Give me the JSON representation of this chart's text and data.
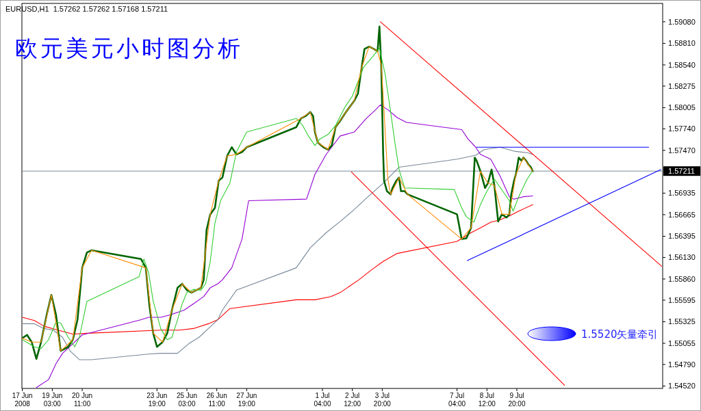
{
  "chart_data": {
    "type": "line",
    "title": "欧元美元小时图分析",
    "subtitle": "EURUSD,H1  1.57262 1.57262 1.57168 1.57211",
    "xlim": [
      "2008-06-17T18:30",
      "2008-07-16T08:00"
    ],
    "ylim": [
      1.5449,
      1.5931
    ],
    "xticks": [
      {
        "value": "2008-06-17T19:00",
        "label": "17 Jun 2008"
      },
      {
        "value": "2008-06-19T03:00",
        "label": "19 Jun 03:00"
      },
      {
        "value": "2008-06-20T11:00",
        "label": "20 Jun 11:00"
      },
      {
        "value": "2008-06-23T19:00",
        "label": "23 Jun 19:00"
      },
      {
        "value": "2008-06-25T03:00",
        "label": "25 Jun 03:00"
      },
      {
        "value": "2008-06-26T11:00",
        "label": "26 Jun 11:00"
      },
      {
        "value": "2008-06-27T19:00",
        "label": "27 Jun 19:00"
      },
      {
        "value": "2008-07-01T04:00",
        "label": "1 Jul 04:00"
      },
      {
        "value": "2008-07-02T12:00",
        "label": "2 Jul 12:00"
      },
      {
        "value": "2008-07-03T20:00",
        "label": "3 Jul 20:00"
      },
      {
        "value": "2008-07-07T04:00",
        "label": "7 Jul 04:00"
      },
      {
        "value": "2008-07-08T12:00",
        "label": "8 Jul 12:00"
      },
      {
        "value": "2008-07-09T20:00",
        "label": "9 Jul 20:00"
      }
    ],
    "yticks": [
      {
        "value": 1.5908,
        "label": "1.59080"
      },
      {
        "value": 1.5881,
        "label": "1.58810"
      },
      {
        "value": 1.5854,
        "label": "1.58540"
      },
      {
        "value": 1.58275,
        "label": "1.58275"
      },
      {
        "value": 1.58005,
        "label": "1.58005"
      },
      {
        "value": 1.5774,
        "label": "1.57740"
      },
      {
        "value": 1.5747,
        "label": "1.57470"
      },
      {
        "value": 1.56935,
        "label": "1.56935"
      },
      {
        "value": 1.56665,
        "label": "1.56665"
      },
      {
        "value": 1.56395,
        "label": "1.56395"
      },
      {
        "value": 1.5613,
        "label": "1.56130"
      },
      {
        "value": 1.5586,
        "label": "1.55860"
      },
      {
        "value": 1.55595,
        "label": "1.55595"
      },
      {
        "value": 1.55325,
        "label": "1.55325"
      },
      {
        "value": 1.55055,
        "label": "1.55055"
      },
      {
        "value": 1.5479,
        "label": "1.54790"
      },
      {
        "value": 1.5452,
        "label": "1.54520"
      }
    ],
    "ref_lines": [
      {
        "axis": "y",
        "value": 1.57211,
        "label": "1.57211",
        "color": "#778899"
      }
    ],
    "annotations": [
      "1.5520矢量牵引"
    ],
    "series": [
      {
        "color": "#ff0000",
        "x": [
          "2008-06-17T19:00",
          "2008-06-18T08:00",
          "2008-06-18T18:00",
          "2008-06-19T09:00",
          "2008-06-20T01:00",
          "2008-06-20T16:00",
          "2008-06-23T23:00",
          "2008-06-24T19:00",
          "2008-06-25T10:00",
          "2008-06-26T02:00",
          "2008-06-26T12:00",
          "2008-06-27T01:00",
          "2008-06-30T00:00",
          "2008-06-30T20:00",
          "2008-07-01T13:00",
          "2008-07-01T23:00",
          "2008-07-02T09:00",
          "2008-07-02T19:00",
          "2008-07-03T08:00",
          "2008-07-03T21:00",
          "2008-07-04T12:00",
          "2008-07-07T04:00",
          "2008-07-07T19:00",
          "2008-07-08T05:00",
          "2008-07-08T16:00",
          "2008-07-09T02:00",
          "2008-07-09T12:00",
          "2008-07-09T22:00",
          "2008-07-10T13:00"
        ],
        "values": [
          1.5538,
          1.5534,
          1.5527,
          1.5522,
          1.5517,
          1.5518,
          1.5522,
          1.5522,
          1.5524,
          1.553,
          1.5535,
          1.5549,
          1.556,
          1.556,
          1.5564,
          1.5569,
          1.5577,
          1.5585,
          1.5597,
          1.5608,
          1.5618,
          1.5633,
          1.5644,
          1.565,
          1.5657,
          1.566,
          1.5665,
          1.5671,
          1.5679
        ]
      },
      {
        "color": "#778899",
        "x": [
          "2008-06-17T19:00",
          "2008-06-18T08:00",
          "2008-06-18T18:00",
          "2008-06-19T04:00",
          "2008-06-19T14:00",
          "2008-06-19T22:00",
          "2008-06-20T08:00",
          "2008-06-20T21:00",
          "2008-06-23T10:00",
          "2008-06-23T23:00",
          "2008-06-24T17:00",
          "2008-06-25T05:00",
          "2008-06-25T16:00",
          "2008-06-26T02:00",
          "2008-06-26T12:00",
          "2008-06-26T17:00",
          "2008-06-27T08:00",
          "2008-06-30T00:00",
          "2008-06-30T15:00",
          "2008-07-01T08:00",
          "2008-07-01T23:00",
          "2008-07-02T14:00",
          "2008-07-03T02:00",
          "2008-07-03T21:00",
          "2008-07-04T14:00",
          "2008-07-07T04:00",
          "2008-07-08T00:00",
          "2008-07-08T09:00",
          "2008-07-09T02:00",
          "2008-07-09T17:00",
          "2008-07-10T08:00",
          "2008-07-10T13:00"
        ],
        "values": [
          1.553,
          1.553,
          1.5524,
          1.5522,
          1.5513,
          1.5496,
          1.5485,
          1.5485,
          1.5492,
          1.5493,
          1.5493,
          1.5505,
          1.5513,
          1.5524,
          1.5535,
          1.5547,
          1.5572,
          1.56,
          1.5625,
          1.5644,
          1.5658,
          1.5673,
          1.5686,
          1.5706,
          1.5726,
          1.5736,
          1.5741,
          1.5748,
          1.5751,
          1.5746,
          1.5744,
          1.5742
        ]
      },
      {
        "color": "#9400d3",
        "x": [
          "2008-06-18T10:00",
          "2008-06-18T23:00",
          "2008-06-19T07:00",
          "2008-06-19T14:00",
          "2008-06-20T01:00",
          "2008-06-20T11:00",
          "2008-06-23T02:00",
          "2008-06-23T10:00",
          "2008-06-23T23:00",
          "2008-06-24T09:00",
          "2008-06-25T00:00",
          "2008-06-25T10:00",
          "2008-06-25T21:00",
          "2008-06-26T04:00",
          "2008-06-26T12:00",
          "2008-06-26T17:00",
          "2008-06-27T03:00",
          "2008-06-27T14:00",
          "2008-06-27T21:00",
          "2008-06-30T11:00",
          "2008-06-30T20:00",
          "2008-07-01T08:00",
          "2008-07-01T23:00",
          "2008-07-02T14:00",
          "2008-07-03T03:00",
          "2008-07-03T13:00",
          "2008-07-03T18:00",
          "2008-07-04T02:00",
          "2008-07-04T12:00",
          "2008-07-04T22:00",
          "2008-07-07T09:00",
          "2008-07-07T16:00",
          "2008-07-08T00:00",
          "2008-07-08T05:00",
          "2008-07-08T16:00",
          "2008-07-09T02:00",
          "2008-07-09T12:00",
          "2008-07-09T17:00",
          "2008-07-10T03:00",
          "2008-07-10T13:00"
        ],
        "values": [
          1.545,
          1.546,
          1.548,
          1.5493,
          1.5505,
          1.5516,
          1.5535,
          1.5538,
          1.5538,
          1.5541,
          1.5547,
          1.5555,
          1.5564,
          1.5575,
          1.558,
          1.5585,
          1.56,
          1.5636,
          1.5684,
          1.5686,
          1.5717,
          1.5742,
          1.5765,
          1.577,
          1.5787,
          1.5798,
          1.5804,
          1.5798,
          1.5788,
          1.5782,
          1.5773,
          1.5761,
          1.5751,
          1.5742,
          1.5736,
          1.5715,
          1.5689,
          1.5686,
          1.5689,
          1.569
        ]
      },
      {
        "color": "#006400",
        "x": [
          "2008-06-17T19:00",
          "2008-06-18T00:00",
          "2008-06-18T05:00",
          "2008-06-18T10:00",
          "2008-06-18T15:00",
          "2008-06-18T21:00",
          "2008-06-19T02:00",
          "2008-06-19T07:00",
          "2008-06-19T12:00",
          "2008-06-19T20:00",
          "2008-06-20T01:00",
          "2008-06-20T06:00",
          "2008-06-20T11:00",
          "2008-06-20T16:00",
          "2008-06-20T21:00",
          "2008-06-23T02:00",
          "2008-06-23T07:00",
          "2008-06-23T11:00",
          "2008-06-23T15:00",
          "2008-06-23T19:00",
          "2008-06-24T01:00",
          "2008-06-24T06:00",
          "2008-06-24T11:00",
          "2008-06-24T17:00",
          "2008-06-24T22:00",
          "2008-06-25T03:00",
          "2008-06-25T08:00",
          "2008-06-25T13:00",
          "2008-06-25T18:00",
          "2008-06-25T21:00",
          "2008-06-26T00:00",
          "2008-06-26T04:00",
          "2008-06-26T09:00",
          "2008-06-26T13:00",
          "2008-06-26T17:00",
          "2008-06-26T22:00",
          "2008-06-27T03:00",
          "2008-06-27T08:00",
          "2008-06-27T14:00",
          "2008-06-27T19:00",
          "2008-06-30T00:00",
          "2008-06-30T05:00",
          "2008-06-30T10:00",
          "2008-06-30T15:00",
          "2008-06-30T18:00",
          "2008-06-30T20:00",
          "2008-06-30T23:00",
          "2008-07-01T05:00",
          "2008-07-01T10:00",
          "2008-07-01T14:00",
          "2008-07-01T18:00",
          "2008-07-01T23:00",
          "2008-07-02T04:00",
          "2008-07-02T09:00",
          "2008-07-02T14:00",
          "2008-07-02T18:00",
          "2008-07-02T22:00",
          "2008-07-03T01:00",
          "2008-07-03T06:00",
          "2008-07-03T11:00",
          "2008-07-03T15:00",
          "2008-07-03T17:00",
          "2008-07-03T19:00",
          "2008-07-03T21:00",
          "2008-07-03T22:00",
          "2008-07-04T01:00",
          "2008-07-04T05:00",
          "2008-07-04T07:00",
          "2008-07-04T11:00",
          "2008-07-04T14:00",
          "2008-07-04T16:00",
          "2008-07-04T20:00",
          "2008-07-04T23:00",
          "2008-07-07T04:00",
          "2008-07-07T09:00",
          "2008-07-07T14:00",
          "2008-07-07T19:00",
          "2008-07-07T23:00",
          "2008-07-08T01:00",
          "2008-07-08T05:00",
          "2008-07-08T10:00",
          "2008-07-08T13:00",
          "2008-07-08T17:00",
          "2008-07-08T20:00",
          "2008-07-09T00:00",
          "2008-07-09T04:00",
          "2008-07-09T09:00",
          "2008-07-09T12:00",
          "2008-07-09T14:00",
          "2008-07-09T17:00",
          "2008-07-09T19:00",
          "2008-07-09T22:00",
          "2008-07-10T01:00",
          "2008-07-10T03:00",
          "2008-07-10T06:00",
          "2008-07-10T08:00",
          "2008-07-10T11:00",
          "2008-07-10T13:00"
        ],
        "values": [
          1.5512,
          1.5516,
          1.5507,
          1.5486,
          1.5507,
          1.5541,
          1.5566,
          1.5541,
          1.5496,
          1.5501,
          1.551,
          1.5535,
          1.56,
          1.5619,
          1.5622,
          1.5611,
          1.56,
          1.5552,
          1.5518,
          1.5501,
          1.5507,
          1.5518,
          1.5547,
          1.5575,
          1.558,
          1.5572,
          1.5569,
          1.5572,
          1.5575,
          1.5585,
          1.5647,
          1.5667,
          1.5675,
          1.5709,
          1.5713,
          1.574,
          1.5751,
          1.5742,
          1.5745,
          1.5751,
          1.5776,
          1.5787,
          1.579,
          1.5795,
          1.579,
          1.577,
          1.5757,
          1.5751,
          1.5748,
          1.5753,
          1.5776,
          1.5784,
          1.5793,
          1.5801,
          1.5809,
          1.5818,
          1.5851,
          1.5874,
          1.5877,
          1.5874,
          1.5871,
          1.5902,
          1.5851,
          1.5742,
          1.5709,
          1.5696,
          1.5692,
          1.57,
          1.5709,
          1.5713,
          1.5696,
          1.5696,
          1.5692,
          1.5667,
          1.5636,
          1.5637,
          1.565,
          1.5738,
          1.5734,
          1.5721,
          1.57,
          1.5706,
          1.5723,
          1.5703,
          1.5658,
          1.5667,
          1.5663,
          1.5667,
          1.5692,
          1.5709,
          1.5717,
          1.5738,
          1.5734,
          1.5738,
          1.5734,
          1.573,
          1.5726,
          1.5721
        ]
      },
      {
        "color": "#32cd32",
        "x": [
          "2008-06-17T19:00",
          "2008-06-18T08:00",
          "2008-06-18T15:00",
          "2008-06-18T23:00",
          "2008-06-19T07:00",
          "2008-06-19T12:00",
          "2008-06-19T20:00",
          "2008-06-20T03:00",
          "2008-06-20T08:00",
          "2008-06-20T16:00",
          "2008-06-23T00:00",
          "2008-06-23T05:00",
          "2008-06-23T10:00",
          "2008-06-23T15:00",
          "2008-06-23T23:00",
          "2008-06-24T06:00",
          "2008-06-24T11:00",
          "2008-06-24T17:00",
          "2008-06-24T22:00",
          "2008-06-25T03:00",
          "2008-06-25T10:00",
          "2008-06-25T18:00",
          "2008-06-25T23:00",
          "2008-06-26T04:00",
          "2008-06-26T09:00",
          "2008-06-26T15:00",
          "2008-06-27T01:00",
          "2008-06-27T08:00",
          "2008-06-27T19:00",
          "2008-06-30T00:00",
          "2008-06-30T07:00",
          "2008-06-30T13:00",
          "2008-06-30T20:00",
          "2008-07-01T01:00",
          "2008-07-01T10:00",
          "2008-07-01T18:00",
          "2008-07-02T04:00",
          "2008-07-02T12:00",
          "2008-07-03T00:00",
          "2008-07-03T11:00",
          "2008-07-03T17:00",
          "2008-07-03T23:00",
          "2008-07-04T05:00",
          "2008-07-04T10:00",
          "2008-07-04T14:00",
          "2008-07-04T20:00",
          "2008-07-07T01:00",
          "2008-07-07T09:00",
          "2008-07-07T14:00",
          "2008-07-07T22:00",
          "2008-07-08T05:00",
          "2008-07-08T12:00",
          "2008-07-08T20:00",
          "2008-07-09T12:00",
          "2008-07-09T16:00",
          "2008-07-09T22:00",
          "2008-07-10T07:00",
          "2008-07-10T12:00"
        ],
        "values": [
          1.551,
          1.5501,
          1.5499,
          1.551,
          1.5532,
          1.5531,
          1.5513,
          1.5501,
          1.5513,
          1.5558,
          1.5589,
          1.5611,
          1.5594,
          1.5558,
          1.5524,
          1.551,
          1.5513,
          1.5535,
          1.5555,
          1.5569,
          1.5573,
          1.5572,
          1.558,
          1.5608,
          1.5656,
          1.5684,
          1.5706,
          1.5745,
          1.577,
          1.5787,
          1.5778,
          1.5765,
          1.5753,
          1.5761,
          1.5767,
          1.5778,
          1.5801,
          1.5815,
          1.5851,
          1.5866,
          1.5875,
          1.5843,
          1.5795,
          1.5753,
          1.5723,
          1.57,
          1.5698,
          1.5675,
          1.5664,
          1.5657,
          1.5679,
          1.5696,
          1.5711,
          1.5684,
          1.5671,
          1.5689,
          1.5711,
          1.572
        ]
      },
      {
        "color": "#ff8c00",
        "x": [
          "2008-06-17T19:00",
          "2008-06-18T05:00",
          "2008-06-18T15:00",
          "2008-06-19T02:00",
          "2008-06-19T12:00",
          "2008-06-20T01:00",
          "2008-06-20T11:00",
          "2008-06-20T21:00",
          "2008-06-23T07:00",
          "2008-06-23T15:00",
          "2008-06-24T01:00",
          "2008-06-24T11:00",
          "2008-06-24T22:00",
          "2008-06-25T08:00",
          "2008-06-25T18:00",
          "2008-06-26T04:00",
          "2008-06-26T13:00",
          "2008-06-26T22:00",
          "2008-06-27T08:00",
          "2008-06-27T19:00",
          "2008-06-30T05:00",
          "2008-06-30T15:00",
          "2008-06-30T23:00",
          "2008-07-01T10:00",
          "2008-07-01T18:00",
          "2008-07-02T04:00",
          "2008-07-02T14:00",
          "2008-07-02T22:00",
          "2008-07-03T06:00",
          "2008-07-03T15:00",
          "2008-07-03T19:00",
          "2008-07-03T22:00",
          "2008-07-04T02:00",
          "2008-07-04T05:00",
          "2008-07-04T14:00",
          "2008-07-04T23:00",
          "2008-07-07T09:00",
          "2008-07-07T19:00",
          "2008-07-08T05:00",
          "2008-07-08T13:00",
          "2008-07-08T20:00",
          "2008-07-09T04:00",
          "2008-07-09T12:00",
          "2008-07-09T19:00",
          "2008-07-10T03:00",
          "2008-07-10T13:00"
        ],
        "values": [
          1.5512,
          1.5507,
          1.5507,
          1.5566,
          1.5496,
          1.551,
          1.56,
          1.5622,
          1.56,
          1.5518,
          1.5507,
          1.5547,
          1.558,
          1.5569,
          1.5575,
          1.5667,
          1.5709,
          1.574,
          1.5742,
          1.5751,
          1.5787,
          1.5795,
          1.5757,
          1.5748,
          1.5776,
          1.5793,
          1.5809,
          1.5851,
          1.5877,
          1.5871,
          1.5854,
          1.5795,
          1.5711,
          1.5692,
          1.5713,
          1.5692,
          1.5636,
          1.565,
          1.5721,
          1.5706,
          1.5703,
          1.5667,
          1.5667,
          1.5717,
          1.5738,
          1.5721
        ]
      },
      {
        "color": "#ff0000",
        "x": [
          "2008-07-03T18:00",
          "2008-07-16T07:00"
        ],
        "values": [
          1.5908,
          1.5602
        ]
      },
      {
        "color": "#ff0000",
        "x": [
          "2008-07-02T11:00",
          "2008-07-11T23:00"
        ],
        "values": [
          1.572,
          1.5453
        ]
      },
      {
        "color": "#0000ff",
        "x": [
          "2008-07-08T01:00",
          "2008-07-15T17:00"
        ],
        "values": [
          1.5751,
          1.5751
        ]
      },
      {
        "color": "#0000ff",
        "x": [
          "2008-07-07T15:00",
          "2008-07-16T06:00"
        ],
        "values": [
          1.5609,
          1.5723
        ]
      }
    ]
  }
}
